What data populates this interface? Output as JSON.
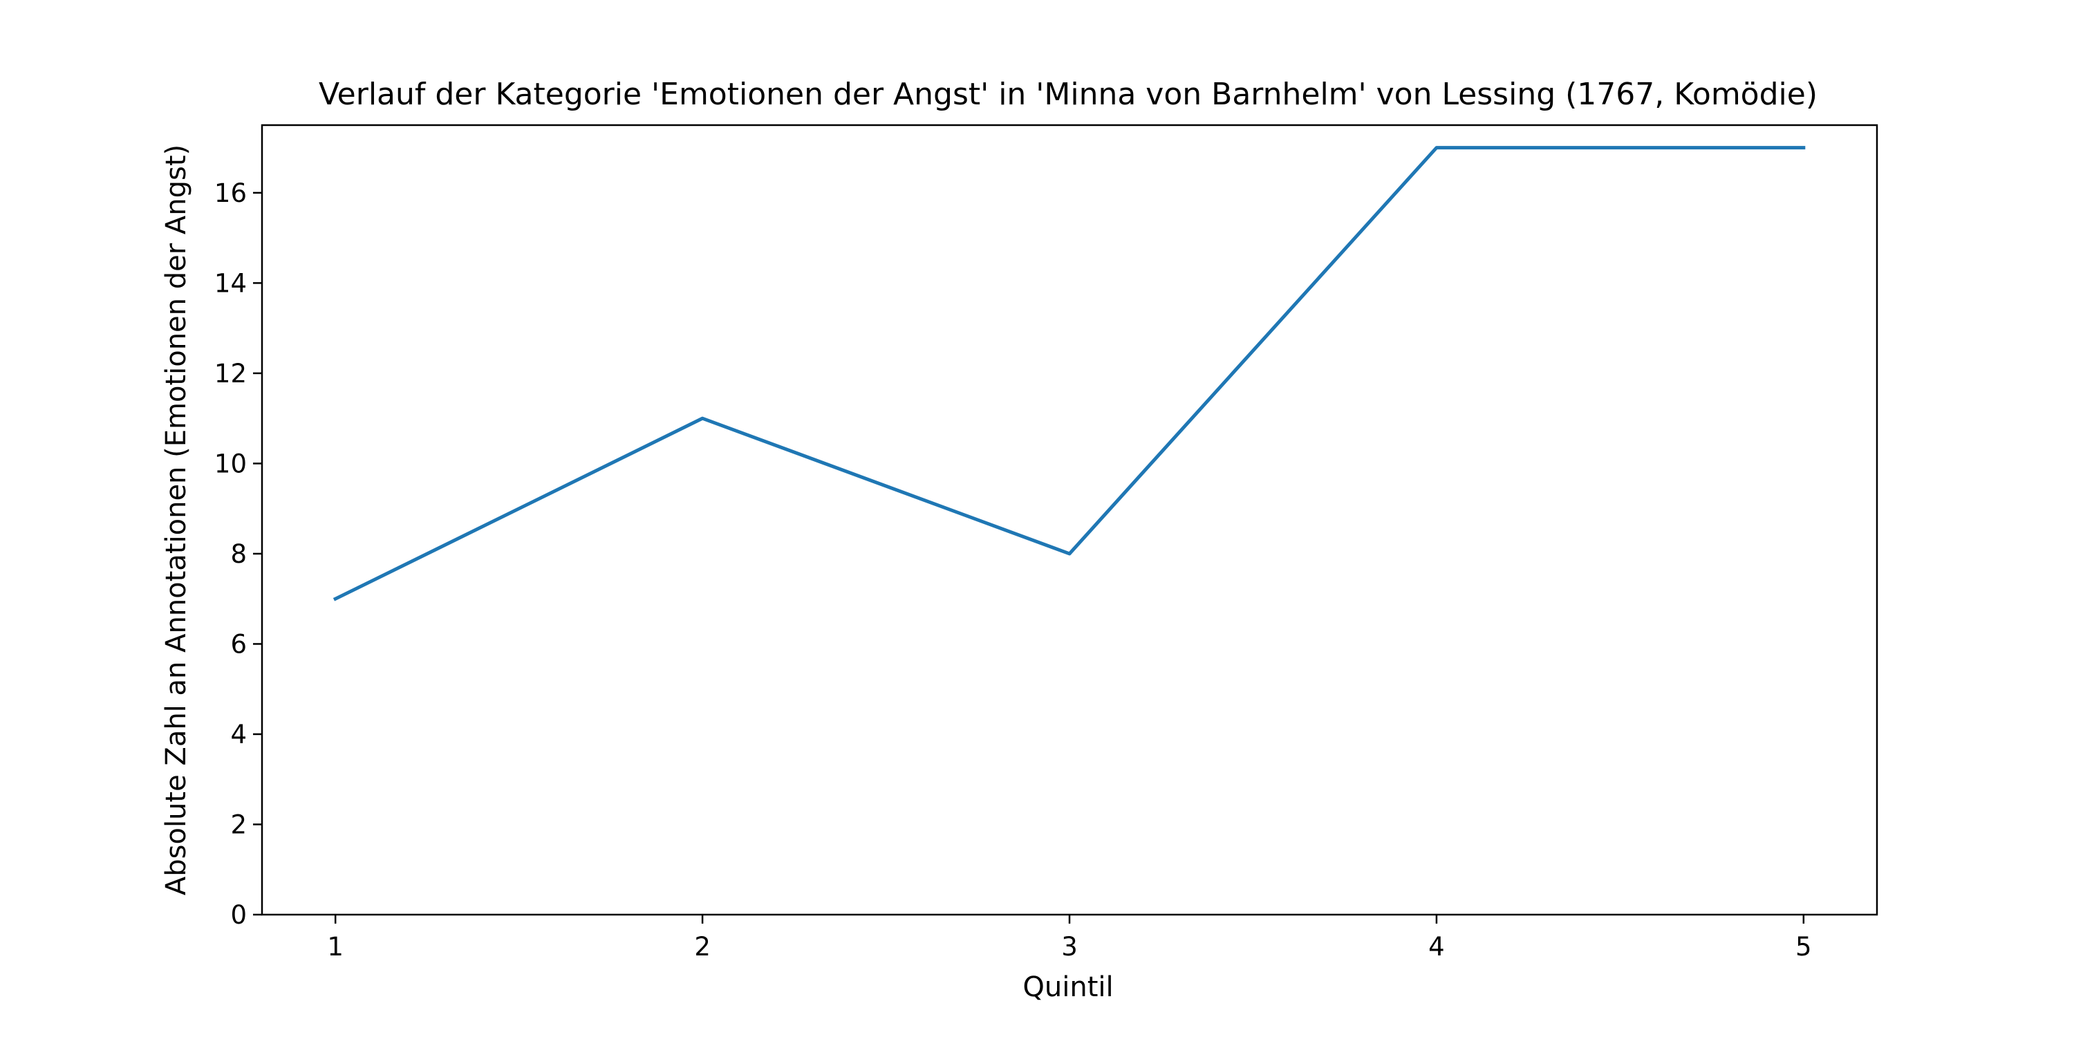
{
  "chart_data": {
    "type": "line",
    "title": "Verlauf der Kategorie 'Emotionen der Angst' in 'Minna von Barnhelm' von Lessing (1767, Komödie)",
    "xlabel": "Quintil",
    "ylabel": "Absolute Zahl an Annotationen (Emotionen der Angst)",
    "x": [
      1,
      2,
      3,
      4,
      5
    ],
    "xticks": [
      "1",
      "2",
      "3",
      "4",
      "5"
    ],
    "yticks": [
      "0",
      "2",
      "4",
      "6",
      "8",
      "10",
      "12",
      "14",
      "16"
    ],
    "xlim": [
      0.8,
      5.2
    ],
    "ylim": [
      0,
      17.5
    ],
    "grid": false,
    "legend": "none",
    "series": [
      {
        "values": [
          7,
          11,
          8,
          17,
          17
        ],
        "color": "#1f77b4"
      }
    ]
  }
}
